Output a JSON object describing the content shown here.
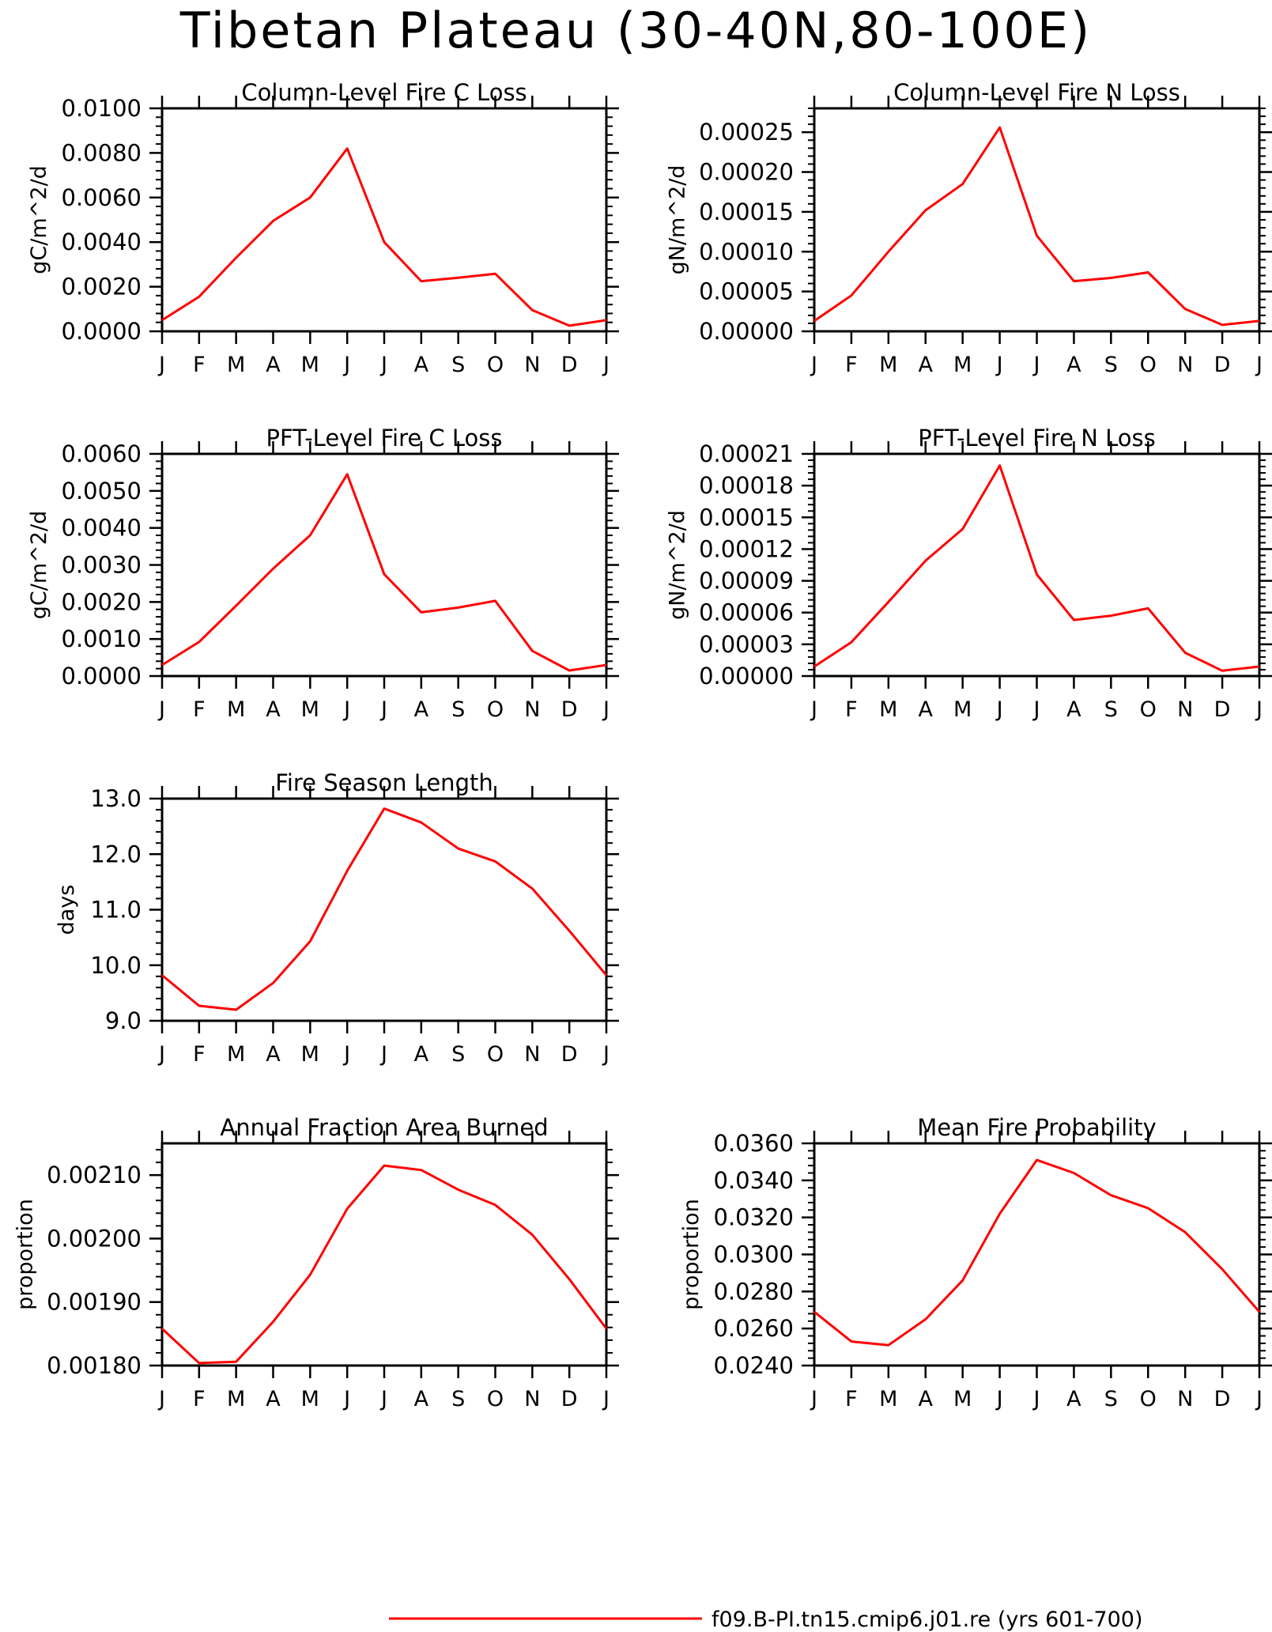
{
  "page_title": "Tibetan Plateau (30-40N,80-100E)",
  "months": [
    "J",
    "F",
    "M",
    "A",
    "M",
    "J",
    "J",
    "A",
    "S",
    "O",
    "N",
    "D",
    "J"
  ],
  "line_color": "#ff0000",
  "legend": {
    "label": "f09.B-PI.tn15.cmip6.j01.re (yrs 601-700)"
  },
  "chart_data": [
    {
      "type": "line",
      "title": "Column-Level Fire C Loss",
      "ylabel": "gC/m^2/d",
      "ylim": [
        0,
        0.01
      ],
      "yticks": [
        0,
        0.002,
        0.004,
        0.006,
        0.008,
        0.01
      ],
      "yticklabels": [
        "0.0000",
        "0.0020",
        "0.0040",
        "0.0060",
        "0.0080",
        "0.0100"
      ],
      "series": [
        {
          "values": [
            0.0005,
            0.00155,
            0.0033,
            0.00495,
            0.006,
            0.0082,
            0.004,
            0.00225,
            0.0024,
            0.00258,
            0.00095,
            0.00025,
            0.0005
          ]
        }
      ]
    },
    {
      "type": "line",
      "title": "Column-Level Fire N Loss",
      "ylabel": "gN/m^2/d",
      "ylim": [
        0,
        0.00028
      ],
      "yticks": [
        0,
        5e-05,
        0.0001,
        0.00015,
        0.0002,
        0.00025
      ],
      "yticklabels": [
        "0.00000",
        "0.00005",
        "0.00010",
        "0.00015",
        "0.00020",
        "0.00025"
      ],
      "series": [
        {
          "values": [
            1.3e-05,
            4.5e-05,
            0.0001,
            0.000152,
            0.000185,
            0.000256,
            0.00012,
            6.3e-05,
            6.7e-05,
            7.4e-05,
            2.8e-05,
            8e-06,
            1.3e-05
          ]
        }
      ]
    },
    {
      "type": "line",
      "title": "PFT-Level Fire C Loss",
      "ylabel": "gC/m^2/d",
      "ylim": [
        0,
        0.006
      ],
      "yticks": [
        0,
        0.001,
        0.002,
        0.003,
        0.004,
        0.005,
        0.006
      ],
      "yticklabels": [
        "0.0000",
        "0.0010",
        "0.0020",
        "0.0030",
        "0.0040",
        "0.0050",
        "0.0060"
      ],
      "series": [
        {
          "values": [
            0.0003,
            0.00092,
            0.0019,
            0.0029,
            0.0038,
            0.00545,
            0.00275,
            0.00172,
            0.00185,
            0.00203,
            0.00068,
            0.00015,
            0.0003
          ]
        }
      ]
    },
    {
      "type": "line",
      "title": "PFT-Level Fire N Loss",
      "ylabel": "gN/m^2/d",
      "ylim": [
        0,
        0.00021
      ],
      "yticks": [
        0,
        3e-05,
        6e-05,
        9e-05,
        0.00012,
        0.00015,
        0.00018,
        0.00021
      ],
      "yticklabels": [
        "0.00000",
        "0.00003",
        "0.00006",
        "0.00009",
        "0.00012",
        "0.00015",
        "0.00018",
        "0.00021"
      ],
      "series": [
        {
          "values": [
            9e-06,
            3.2e-05,
            7e-05,
            0.000109,
            0.000139,
            0.000199,
            9.6e-05,
            5.3e-05,
            5.7e-05,
            6.4e-05,
            2.2e-05,
            5e-06,
            9e-06
          ]
        }
      ]
    },
    {
      "type": "line",
      "title": "Fire Season Length",
      "ylabel": "days",
      "ylim": [
        9,
        13
      ],
      "yticks": [
        9,
        10,
        11,
        12,
        13
      ],
      "yticklabels": [
        "9.0",
        "10.0",
        "11.0",
        "12.0",
        "13.0"
      ],
      "series": [
        {
          "values": [
            9.82,
            9.27,
            9.2,
            9.68,
            10.43,
            11.7,
            12.82,
            12.57,
            12.1,
            11.87,
            11.38,
            10.62,
            9.82
          ]
        }
      ]
    },
    {
      "type": "line",
      "title": "Annual Fraction Area Burned",
      "ylabel": "proportion",
      "ylim": [
        0.0018,
        0.00215
      ],
      "yticks": [
        0.0018,
        0.0019,
        0.002,
        0.0021
      ],
      "yticklabels": [
        "0.00180",
        "0.00190",
        "0.00200",
        "0.00210"
      ],
      "series": [
        {
          "values": [
            0.001858,
            0.001804,
            0.001806,
            0.001869,
            0.001943,
            0.002047,
            0.002115,
            0.002108,
            0.002077,
            0.002053,
            0.002006,
            0.001936,
            0.001858
          ]
        }
      ]
    },
    {
      "type": "line",
      "title": "Mean Fire Probability",
      "ylabel": "proportion",
      "ylim": [
        0.024,
        0.036
      ],
      "yticks": [
        0.024,
        0.026,
        0.028,
        0.03,
        0.032,
        0.034,
        0.036
      ],
      "yticklabels": [
        "0.0240",
        "0.0260",
        "0.0280",
        "0.0300",
        "0.0320",
        "0.0340",
        "0.0360"
      ],
      "series": [
        {
          "values": [
            0.0269,
            0.0253,
            0.0251,
            0.0265,
            0.0286,
            0.0322,
            0.0351,
            0.0344,
            0.0332,
            0.0325,
            0.0312,
            0.0292,
            0.0269
          ]
        }
      ]
    }
  ]
}
